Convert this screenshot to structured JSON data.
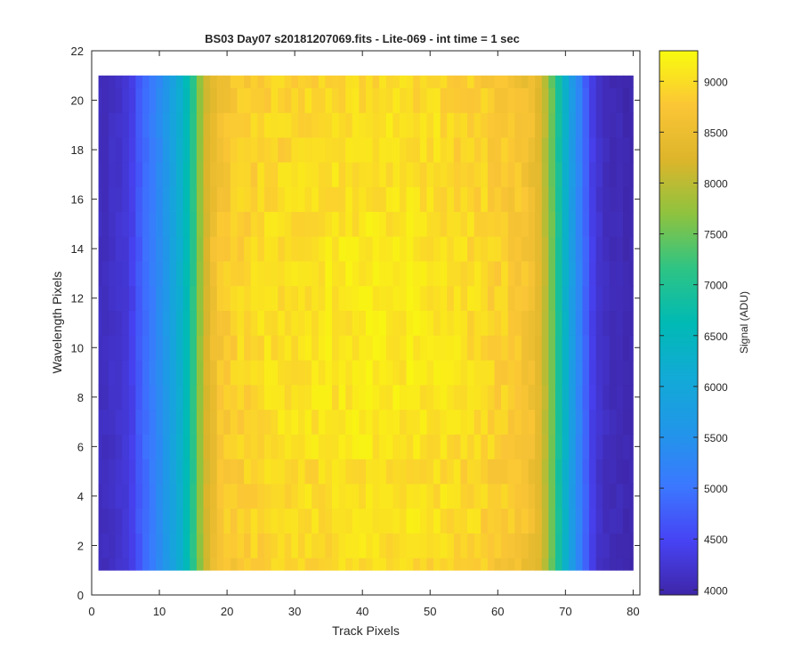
{
  "chart_data": {
    "type": "heatmap",
    "title": "BS03 Day07  s20181207069.fits - Lite-069 - int time = 1 sec",
    "xlabel": "Track Pixels",
    "ylabel": "Wavelength Pixels",
    "colorbar_label": "Signal (ADU)",
    "xlim": [
      0,
      81
    ],
    "ylim": [
      0,
      22
    ],
    "x_ticks": [
      "0",
      "10",
      "20",
      "30",
      "40",
      "50",
      "60",
      "70",
      "80"
    ],
    "y_ticks": [
      "0",
      "2",
      "4",
      "6",
      "8",
      "10",
      "12",
      "14",
      "16",
      "18",
      "20",
      "22"
    ],
    "colorbar_ticks": [
      "4000",
      "4500",
      "5000",
      "5500",
      "6000",
      "6500",
      "7000",
      "7500",
      "8000",
      "8500",
      "9000"
    ],
    "clim": [
      3950,
      9300
    ],
    "colormap": "parula",
    "grid": false,
    "x_range": [
      1,
      80
    ],
    "y_range": [
      1,
      21
    ],
    "column_profile_adu": [
      4100,
      4100,
      4150,
      4200,
      4250,
      4400,
      4700,
      4900,
      5100,
      5350,
      5600,
      5900,
      6200,
      6600,
      7100,
      7700,
      8200,
      8500,
      8650,
      8750,
      8800,
      8850,
      8880,
      8900,
      8920,
      8940,
      8950,
      8960,
      8970,
      8980,
      8990,
      9000,
      9000,
      9010,
      9020,
      9020,
      9030,
      9030,
      9040,
      9040,
      9050,
      9050,
      9050,
      9050,
      9050,
      9040,
      9040,
      9030,
      9020,
      9010,
      9000,
      8990,
      8980,
      8970,
      8950,
      8930,
      8910,
      8890,
      8860,
      8830,
      8800,
      8760,
      8720,
      8650,
      8550,
      8350,
      8000,
      7500,
      6900,
      6300,
      5700,
      5250,
      4800,
      4400,
      4200,
      4100,
      4050,
      4050,
      4000,
      4000
    ],
    "row_variation_adu": [
      -80,
      -30,
      20,
      10,
      -20,
      30,
      60,
      40,
      70,
      80,
      60,
      50,
      70,
      40,
      30,
      10,
      -20,
      -40,
      -10,
      -60,
      -90
    ],
    "pixel_noise_adu": 150
  }
}
